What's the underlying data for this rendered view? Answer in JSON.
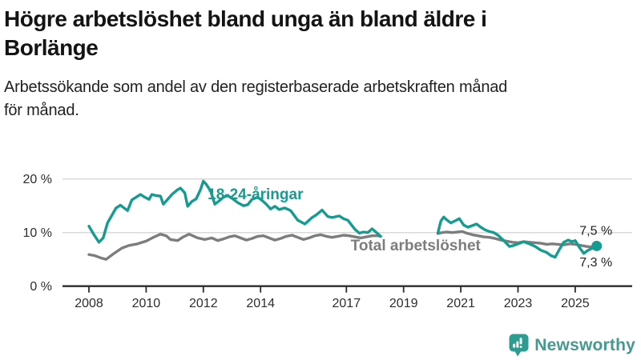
{
  "header": {
    "title_lines": [
      "Högre arbetslöshet bland unga än bland äldre i",
      "Borlänge"
    ],
    "subtitle_lines": [
      "Arbetssökande som andel av den registerbaserade arbetskraften månad",
      "för månad."
    ]
  },
  "footer": {
    "brand": "Newsworthy",
    "brand_color": "#2E9C90"
  },
  "chart_data": {
    "type": "line",
    "title": "Högre arbetslöshet bland unga än bland äldre i Borlänge",
    "subtitle": "Arbetssökande som andel av den registerbaserade arbetskraften månad för månad.",
    "unit": "%",
    "grid": "horizontal",
    "xlim": [
      2007.1,
      2026.3
    ],
    "ylim": [
      0,
      21.5
    ],
    "x_ticks": [
      2008,
      2010,
      2012,
      2014,
      2017,
      2019,
      2021,
      2023,
      2025
    ],
    "x_tick_labels": [
      "2008",
      "2010",
      "2012",
      "2014",
      "2017",
      "2019",
      "2021",
      "2023",
      "2025"
    ],
    "y_ticks": [
      0,
      10,
      20
    ],
    "y_tick_labels": [
      "0 %",
      "10 %",
      "20 %"
    ],
    "axis_color": "#2b2b2b",
    "grid_color": "#d9d9d9",
    "tick_label_color": "#2d2d2d",
    "series": [
      {
        "name": "Total arbetslöshet",
        "color": "#7d7d7d",
        "label": "Total arbetslöshet",
        "label_year": 2017.15,
        "label_value": 6.7,
        "end_dot": false,
        "end_label": "7,3 %",
        "end_value": 7.3,
        "segments": [
          [
            [
              2008.0,
              5.9
            ],
            [
              2008.2,
              5.7
            ],
            [
              2008.4,
              5.3
            ],
            [
              2008.6,
              5.0
            ],
            [
              2008.85,
              6.0
            ],
            [
              2009.15,
              7.1
            ],
            [
              2009.4,
              7.6
            ],
            [
              2009.7,
              7.9
            ],
            [
              2010.0,
              8.4
            ],
            [
              2010.25,
              9.1
            ],
            [
              2010.5,
              9.7
            ],
            [
              2010.7,
              9.4
            ],
            [
              2010.85,
              8.7
            ],
            [
              2011.1,
              8.5
            ],
            [
              2011.3,
              9.2
            ],
            [
              2011.5,
              9.7
            ],
            [
              2011.8,
              9.0
            ],
            [
              2012.05,
              8.7
            ],
            [
              2012.3,
              9.0
            ],
            [
              2012.5,
              8.5
            ],
            [
              2012.7,
              8.8
            ],
            [
              2012.9,
              9.2
            ],
            [
              2013.1,
              9.4
            ],
            [
              2013.3,
              9.0
            ],
            [
              2013.5,
              8.6
            ],
            [
              2013.7,
              8.9
            ],
            [
              2013.9,
              9.3
            ],
            [
              2014.1,
              9.4
            ],
            [
              2014.3,
              9.0
            ],
            [
              2014.5,
              8.6
            ],
            [
              2014.7,
              8.9
            ],
            [
              2014.9,
              9.3
            ],
            [
              2015.1,
              9.5
            ],
            [
              2015.3,
              9.1
            ],
            [
              2015.5,
              8.7
            ],
            [
              2015.7,
              9.0
            ],
            [
              2015.9,
              9.4
            ],
            [
              2016.1,
              9.6
            ],
            [
              2016.3,
              9.3
            ],
            [
              2016.5,
              9.1
            ],
            [
              2016.7,
              9.3
            ],
            [
              2016.9,
              9.5
            ],
            [
              2017.1,
              9.4
            ],
            [
              2017.3,
              9.2
            ],
            [
              2017.5,
              9.0
            ],
            [
              2017.7,
              9.2
            ],
            [
              2017.9,
              9.4
            ],
            [
              2018.1,
              9.4
            ],
            [
              2018.2,
              9.3
            ]
          ],
          [
            [
              2020.2,
              9.8
            ],
            [
              2020.35,
              10.0
            ],
            [
              2020.5,
              10.1
            ],
            [
              2020.7,
              10.0
            ],
            [
              2020.9,
              10.1
            ],
            [
              2021.05,
              10.2
            ],
            [
              2021.2,
              9.9
            ],
            [
              2021.4,
              9.6
            ],
            [
              2021.6,
              9.4
            ],
            [
              2021.8,
              9.2
            ],
            [
              2022.0,
              9.1
            ],
            [
              2022.2,
              8.9
            ],
            [
              2022.4,
              8.6
            ],
            [
              2022.6,
              8.4
            ],
            [
              2022.8,
              8.2
            ],
            [
              2023.0,
              8.1
            ],
            [
              2023.2,
              8.3
            ],
            [
              2023.4,
              8.2
            ],
            [
              2023.6,
              8.1
            ],
            [
              2023.8,
              8.0
            ],
            [
              2024.0,
              7.8
            ],
            [
              2024.2,
              7.9
            ],
            [
              2024.4,
              7.8
            ],
            [
              2024.6,
              7.7
            ],
            [
              2024.8,
              7.9
            ],
            [
              2025.0,
              7.8
            ],
            [
              2025.2,
              7.6
            ],
            [
              2025.4,
              7.4
            ],
            [
              2025.6,
              7.3
            ],
            [
              2025.75,
              7.3
            ]
          ]
        ]
      },
      {
        "name": "18-24-åringar",
        "color": "#169b91",
        "label": "18-24-åringar",
        "label_year": 2012.15,
        "label_value": 16.2,
        "end_dot": true,
        "end_label": "7,5 %",
        "end_value": 7.5,
        "segments": [
          [
            [
              2008.0,
              11.2
            ],
            [
              2008.15,
              9.8
            ],
            [
              2008.35,
              8.2
            ],
            [
              2008.5,
              9.0
            ],
            [
              2008.65,
              11.8
            ],
            [
              2008.95,
              14.6
            ],
            [
              2009.1,
              15.1
            ],
            [
              2009.35,
              14.1
            ],
            [
              2009.5,
              16.1
            ],
            [
              2009.8,
              17.1
            ],
            [
              2009.95,
              16.6
            ],
            [
              2010.1,
              16.2
            ],
            [
              2010.2,
              17.1
            ],
            [
              2010.35,
              16.9
            ],
            [
              2010.5,
              16.8
            ],
            [
              2010.6,
              15.3
            ],
            [
              2010.75,
              16.2
            ],
            [
              2010.9,
              17.1
            ],
            [
              2011.1,
              18.0
            ],
            [
              2011.2,
              18.3
            ],
            [
              2011.35,
              17.4
            ],
            [
              2011.45,
              14.9
            ],
            [
              2011.6,
              15.8
            ],
            [
              2011.75,
              16.3
            ],
            [
              2011.9,
              18.0
            ],
            [
              2012.0,
              19.6
            ],
            [
              2012.1,
              19.0
            ],
            [
              2012.25,
              17.8
            ],
            [
              2012.4,
              15.3
            ],
            [
              2012.55,
              15.9
            ],
            [
              2012.7,
              16.6
            ],
            [
              2012.85,
              16.9
            ],
            [
              2013.0,
              16.4
            ],
            [
              2013.2,
              15.6
            ],
            [
              2013.4,
              15.0
            ],
            [
              2013.55,
              15.2
            ],
            [
              2013.7,
              16.2
            ],
            [
              2013.9,
              16.6
            ],
            [
              2014.05,
              16.0
            ],
            [
              2014.2,
              15.3
            ],
            [
              2014.35,
              14.4
            ],
            [
              2014.5,
              14.9
            ],
            [
              2014.65,
              14.3
            ],
            [
              2014.85,
              14.6
            ],
            [
              2015.05,
              14.1
            ],
            [
              2015.3,
              12.3
            ],
            [
              2015.55,
              11.6
            ],
            [
              2015.8,
              12.8
            ],
            [
              2015.95,
              13.3
            ],
            [
              2016.15,
              14.2
            ],
            [
              2016.35,
              13.0
            ],
            [
              2016.5,
              12.8
            ],
            [
              2016.75,
              13.1
            ],
            [
              2016.9,
              12.6
            ],
            [
              2017.05,
              12.3
            ],
            [
              2017.3,
              10.6
            ],
            [
              2017.45,
              9.9
            ],
            [
              2017.6,
              10.1
            ],
            [
              2017.75,
              10.0
            ],
            [
              2017.9,
              10.7
            ],
            [
              2018.05,
              10.0
            ],
            [
              2018.2,
              9.3
            ]
          ],
          [
            [
              2020.2,
              9.9
            ],
            [
              2020.3,
              12.1
            ],
            [
              2020.4,
              12.9
            ],
            [
              2020.5,
              12.4
            ],
            [
              2020.65,
              11.8
            ],
            [
              2020.8,
              12.2
            ],
            [
              2020.95,
              12.6
            ],
            [
              2021.1,
              11.4
            ],
            [
              2021.25,
              11.0
            ],
            [
              2021.4,
              11.3
            ],
            [
              2021.55,
              11.6
            ],
            [
              2021.7,
              11.0
            ],
            [
              2021.85,
              10.5
            ],
            [
              2022.0,
              10.2
            ],
            [
              2022.15,
              10.0
            ],
            [
              2022.3,
              9.5
            ],
            [
              2022.5,
              8.5
            ],
            [
              2022.7,
              7.4
            ],
            [
              2022.85,
              7.6
            ],
            [
              2023.0,
              7.9
            ],
            [
              2023.2,
              8.3
            ],
            [
              2023.4,
              7.9
            ],
            [
              2023.6,
              7.4
            ],
            [
              2023.8,
              6.7
            ],
            [
              2024.0,
              6.3
            ],
            [
              2024.15,
              5.7
            ],
            [
              2024.3,
              5.4
            ],
            [
              2024.45,
              6.9
            ],
            [
              2024.6,
              8.2
            ],
            [
              2024.75,
              8.6
            ],
            [
              2024.9,
              8.3
            ],
            [
              2025.0,
              8.5
            ],
            [
              2025.15,
              7.2
            ],
            [
              2025.3,
              6.1
            ],
            [
              2025.45,
              6.7
            ],
            [
              2025.6,
              7.1
            ],
            [
              2025.75,
              7.5
            ]
          ]
        ]
      }
    ],
    "annotations": [
      {
        "text": "7,5 %",
        "year": 2025.15,
        "value": 9.6,
        "color": "#1f1f1f"
      },
      {
        "text": "7,3 %",
        "year": 2025.15,
        "value": 3.7,
        "color": "#1f1f1f"
      }
    ]
  }
}
